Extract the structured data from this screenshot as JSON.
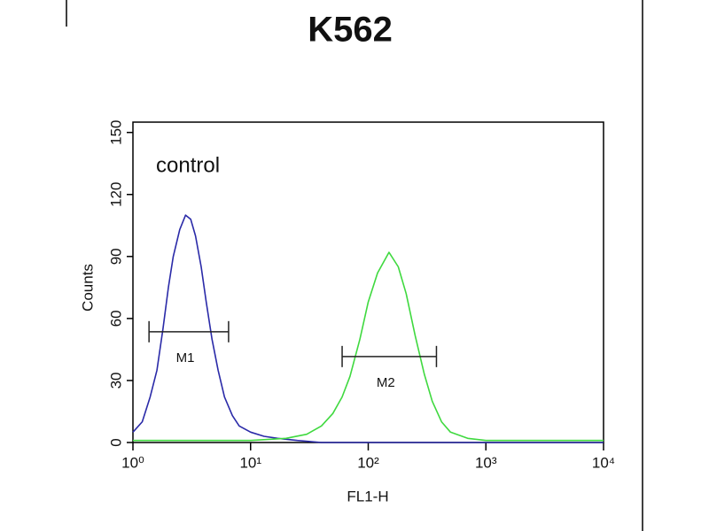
{
  "chart_data": {
    "type": "line",
    "title": "K562",
    "x_label": "FL1-H",
    "y_label": "Counts",
    "annotation": "control",
    "xscale": "log",
    "xlim": [
      1,
      10000
    ],
    "ylim": [
      0,
      155
    ],
    "xticks": [
      {
        "value": 1,
        "label": "10⁰"
      },
      {
        "value": 10,
        "label": "10¹"
      },
      {
        "value": 100,
        "label": "10²"
      },
      {
        "value": 1000,
        "label": "10³"
      },
      {
        "value": 10000,
        "label": "10⁴"
      }
    ],
    "yticks": [
      0,
      30,
      60,
      90,
      120,
      150
    ],
    "series": [
      {
        "color": "#2a2aa8",
        "x": [
          1,
          1.2,
          1.4,
          1.6,
          1.8,
          2,
          2.2,
          2.5,
          2.8,
          3.1,
          3.4,
          3.8,
          4.2,
          4.7,
          5.3,
          6,
          7,
          8,
          10,
          13,
          17,
          25,
          40,
          100,
          1000,
          10000
        ],
        "values": [
          5,
          10,
          22,
          35,
          55,
          75,
          90,
          103,
          110,
          108,
          100,
          85,
          68,
          50,
          35,
          22,
          13,
          8,
          5,
          3,
          2,
          1,
          0,
          0,
          0,
          0
        ]
      },
      {
        "color": "#3fd93f",
        "x": [
          1,
          10,
          20,
          30,
          40,
          50,
          60,
          70,
          85,
          100,
          120,
          150,
          180,
          210,
          250,
          300,
          350,
          420,
          500,
          700,
          1000,
          10000
        ],
        "values": [
          1,
          1,
          2,
          4,
          8,
          14,
          22,
          32,
          50,
          68,
          82,
          92,
          85,
          72,
          52,
          33,
          20,
          10,
          5,
          2,
          1,
          1
        ]
      }
    ],
    "markers": [
      {
        "label": "M1",
        "x": [
          1.37,
          6.5
        ],
        "y": 53.6
      },
      {
        "label": "M2",
        "x": [
          60,
          380
        ],
        "y": 41.6
      }
    ]
  }
}
